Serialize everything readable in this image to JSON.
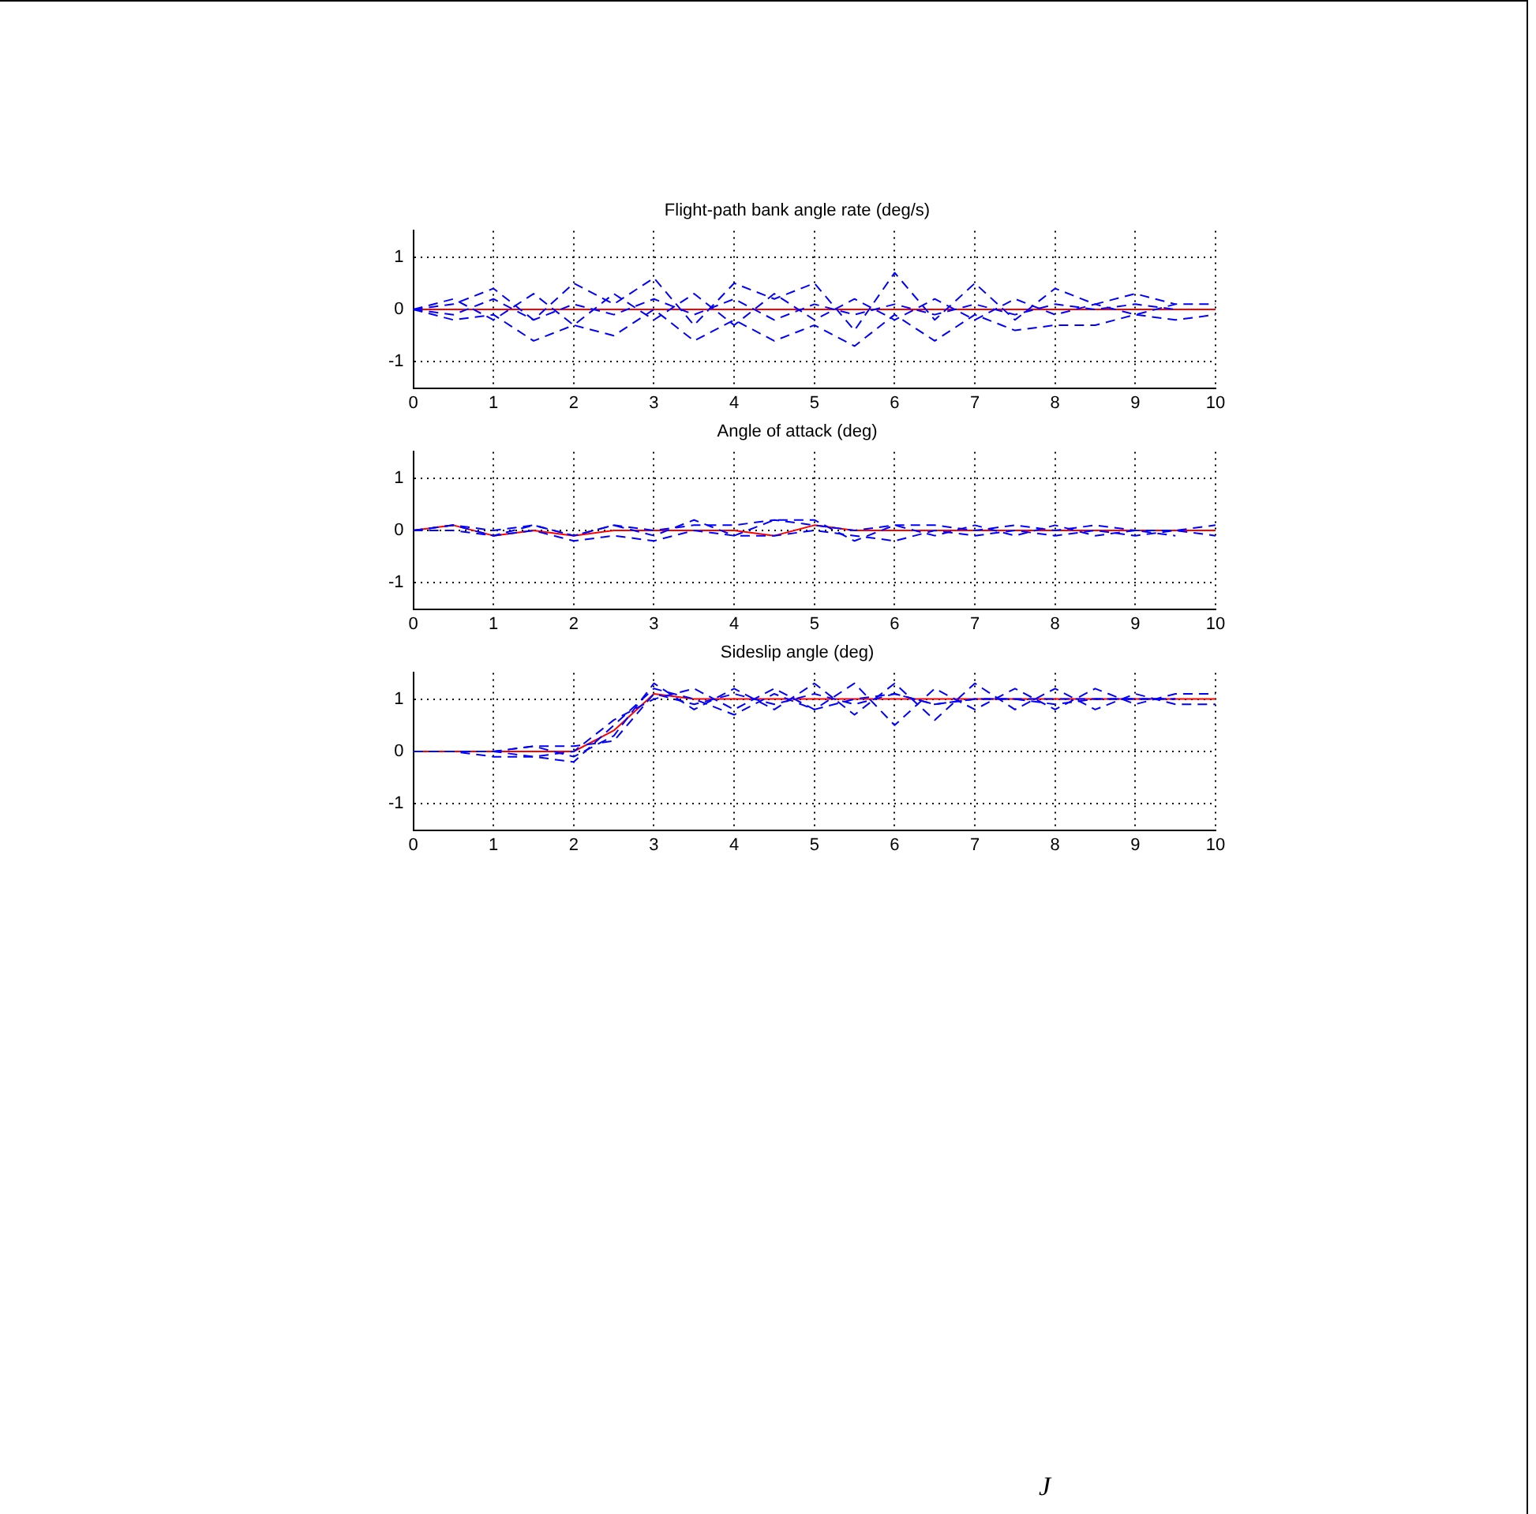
{
  "chart_data": [
    {
      "type": "line",
      "title": "Flight-path bank angle rate (deg/s)",
      "x": [
        0,
        0.5,
        1,
        1.5,
        2,
        2.5,
        3,
        3.5,
        4,
        4.5,
        5,
        5.5,
        6,
        6.5,
        7,
        7.5,
        8,
        8.5,
        9,
        9.5,
        10
      ],
      "xlim": [
        0,
        10
      ],
      "xticks": [
        0,
        1,
        2,
        3,
        4,
        5,
        6,
        7,
        8,
        9,
        10
      ],
      "ylim": [
        -1.5,
        1.5
      ],
      "yticks": [
        -1,
        0,
        1
      ],
      "grid": true,
      "legend": false,
      "marker": "none",
      "series": [
        {
          "color": "#0000ff",
          "line_style": "dashed",
          "values": [
            0,
            0.1,
            0.4,
            -0.2,
            0.5,
            0.1,
            0.6,
            -0.3,
            0.5,
            0.2,
            0.5,
            -0.4,
            0.7,
            -0.2,
            0.5,
            -0.2,
            0.4,
            0.1,
            0.3,
            0.1,
            null
          ]
        },
        {
          "color": "#0000ff",
          "line_style": "dashed",
          "values": [
            0,
            -0.2,
            -0.1,
            -0.6,
            -0.3,
            -0.5,
            0,
            -0.6,
            -0.2,
            -0.6,
            -0.3,
            -0.7,
            -0.1,
            -0.6,
            -0.1,
            -0.4,
            -0.3,
            -0.3,
            -0.1,
            -0.2,
            -0.1
          ]
        },
        {
          "color": "#0000ff",
          "line_style": "dashed",
          "values": [
            0,
            0.2,
            -0.2,
            0.3,
            -0.3,
            0.3,
            -0.2,
            0.3,
            -0.3,
            0.3,
            -0.2,
            0.2,
            -0.2,
            0.2,
            -0.2,
            0.2,
            -0.1,
            0.1,
            -0.1,
            0.1,
            0.1
          ]
        },
        {
          "color": "#0000ff",
          "line_style": "dashed",
          "values": [
            0,
            -0.1,
            0.2,
            -0.2,
            0.1,
            -0.1,
            0.2,
            -0.1,
            0.2,
            -0.2,
            0.1,
            -0.1,
            0.1,
            -0.1,
            0.1,
            -0.1,
            0.1,
            0,
            0.1,
            0,
            null
          ]
        },
        {
          "color": "#ff0000",
          "line_style": "solid",
          "values": [
            0,
            0,
            0,
            0,
            0,
            0,
            0,
            0,
            0,
            0,
            0,
            0,
            0,
            0,
            0,
            0,
            0,
            0,
            0,
            0,
            0
          ]
        }
      ]
    },
    {
      "type": "line",
      "title": "Angle of attack (deg)",
      "x": [
        0,
        0.5,
        1,
        1.5,
        2,
        2.5,
        3,
        3.5,
        4,
        4.5,
        5,
        5.5,
        6,
        6.5,
        7,
        7.5,
        8,
        8.5,
        9,
        9.5,
        10
      ],
      "xlim": [
        0,
        10
      ],
      "xticks": [
        0,
        1,
        2,
        3,
        4,
        5,
        6,
        7,
        8,
        9,
        10
      ],
      "ylim": [
        -1.5,
        1.5
      ],
      "yticks": [
        -1,
        0,
        1
      ],
      "grid": true,
      "legend": false,
      "marker": "none",
      "series": [
        {
          "color": "#0000ff",
          "line_style": "dashed",
          "values": [
            0,
            0.1,
            0,
            0.1,
            -0.1,
            0.1,
            -0.1,
            0.2,
            -0.1,
            0.2,
            0.2,
            -0.2,
            0.1,
            -0.1,
            0.1,
            -0.1,
            0.1,
            -0.1,
            0,
            -0.1,
            null
          ]
        },
        {
          "color": "#0000ff",
          "line_style": "dashed",
          "values": [
            0,
            0,
            -0.1,
            0,
            -0.2,
            -0.1,
            -0.2,
            0,
            -0.1,
            -0.1,
            0,
            -0.1,
            -0.2,
            0,
            -0.1,
            0,
            -0.1,
            0,
            -0.1,
            0,
            -0.1
          ]
        },
        {
          "color": "#0000ff",
          "line_style": "dashed",
          "values": [
            0,
            0.1,
            -0.1,
            0.1,
            -0.1,
            0.1,
            0,
            0.1,
            0.1,
            0.2,
            0.1,
            0,
            0.1,
            0.1,
            0,
            0.1,
            0,
            0.1,
            0,
            0,
            0.1
          ]
        },
        {
          "color": "#ff0000",
          "line_style": "solid",
          "values": [
            0,
            0.1,
            -0.1,
            0,
            -0.1,
            0,
            0,
            0,
            0,
            -0.1,
            0.1,
            0,
            0,
            0,
            0,
            0,
            0,
            0,
            0,
            0,
            0
          ]
        }
      ]
    },
    {
      "type": "line",
      "title": "Sideslip angle (deg)",
      "x": [
        0,
        0.5,
        1,
        1.5,
        2,
        2.5,
        3,
        3.5,
        4,
        4.5,
        5,
        5.5,
        6,
        6.5,
        7,
        7.5,
        8,
        8.5,
        9,
        9.5,
        10
      ],
      "xlim": [
        0,
        10
      ],
      "xticks": [
        0,
        1,
        2,
        3,
        4,
        5,
        6,
        7,
        8,
        9,
        10
      ],
      "ylim": [
        -1.5,
        1.5
      ],
      "yticks": [
        -1,
        0,
        1
      ],
      "grid": true,
      "legend": false,
      "marker": "none",
      "annotations": [
        "J"
      ],
      "series": [
        {
          "color": "#0000ff",
          "line_style": "dashed",
          "values": [
            0,
            0,
            0,
            0.1,
            -0.1,
            0.3,
            1.3,
            0.8,
            1.2,
            0.8,
            1.3,
            0.7,
            1.3,
            0.6,
            1.3,
            0.8,
            1.2,
            0.8,
            1.1,
            0.9,
            0.9
          ]
        },
        {
          "color": "#0000ff",
          "line_style": "dashed",
          "values": [
            0,
            0,
            -0.1,
            -0.1,
            0,
            0.6,
            1,
            1.2,
            0.8,
            1.2,
            0.8,
            1.3,
            0.5,
            1.2,
            0.8,
            1.2,
            0.8,
            1.2,
            0.9,
            1.1,
            1.1
          ]
        },
        {
          "color": "#0000ff",
          "line_style": "dashed",
          "values": [
            0,
            0,
            0,
            0.1,
            0.1,
            0.2,
            1.1,
            0.9,
            1.1,
            0.9,
            1.1,
            0.9,
            1.1,
            0.9,
            1,
            1,
            1,
            1,
            1,
            1,
            null
          ]
        },
        {
          "color": "#0000ff",
          "line_style": "dashed",
          "values": [
            0,
            0,
            0,
            -0.1,
            -0.2,
            0.5,
            1.2,
            1,
            0.7,
            1.1,
            0.8,
            1,
            1.1,
            0.9,
            1,
            1,
            0.9,
            1,
            1,
            1,
            null
          ]
        },
        {
          "color": "#ff0000",
          "line_style": "solid",
          "values": [
            0,
            0,
            0,
            0,
            0,
            0.4,
            1.1,
            1,
            1,
            1,
            1,
            1,
            1,
            1,
            1,
            1,
            1,
            1,
            1,
            1,
            1
          ]
        }
      ]
    }
  ]
}
